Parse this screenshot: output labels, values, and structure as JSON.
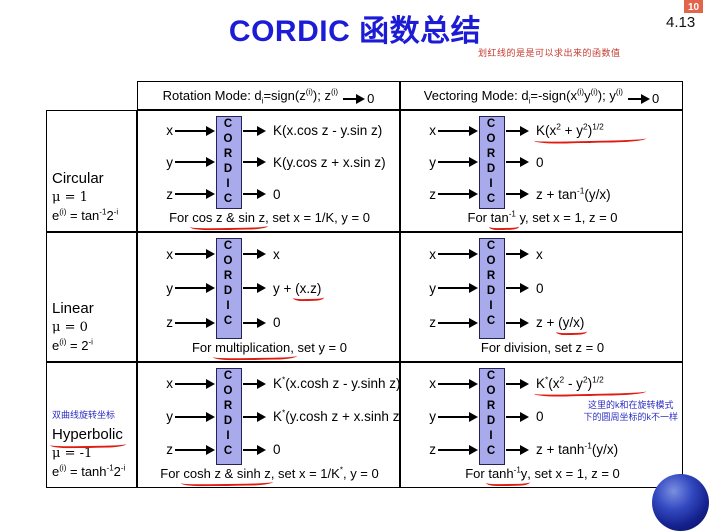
{
  "page": {
    "title": "CORDIC 函数总结",
    "badge": "10",
    "page_number": "4.13",
    "top_note": "划红线的是是可以求出来的函数值"
  },
  "box_label": "CORDIC",
  "inputs": [
    "x",
    "y",
    "z"
  ],
  "headers": {
    "rotation": {
      "formula": "Rotation Mode: d_{i}=sign(z^{(i)}); z^{(i)}",
      "limit": "0"
    },
    "vectoring": {
      "formula": "Vectoring Mode: d_{i}=-sign(x^{(i)}y^{(i)}); y^{(i)}",
      "limit": "0"
    }
  },
  "rows": [
    {
      "label": {
        "name": "Circular",
        "mu": "μ = 1",
        "e": "e^{(i)} = tan^{-1}2^{-i}"
      },
      "rotation": {
        "outputs": [
          {
            "pre": "K(x.cos z - y.sin z)",
            "marked": "",
            "post": ""
          },
          {
            "pre": "K(y.cos z + x.sin z)",
            "marked": "",
            "post": ""
          },
          {
            "pre": "0",
            "marked": "",
            "post": ""
          }
        ],
        "caption": {
          "pre": "For ",
          "marked": "cos z & sin z",
          "post": ", set x = 1/K, y = 0"
        }
      },
      "vectoring": {
        "outputs": [
          {
            "pre": "",
            "marked": "K(x^{2} + y^{2})^{1/2}",
            "post": ""
          },
          {
            "pre": "0",
            "marked": "",
            "post": ""
          },
          {
            "pre": "z + tan^{-1}(y/x)",
            "marked": "",
            "post": ""
          }
        ],
        "caption": {
          "pre": "For ",
          "marked": "tan^{-1}",
          "post": " y, set x = 1, z = 0"
        }
      }
    },
    {
      "label": {
        "name": "Linear",
        "mu": "μ = 0",
        "e": "e^{(i)} = 2^{-i}"
      },
      "rotation": {
        "outputs": [
          {
            "pre": "x",
            "marked": "",
            "post": ""
          },
          {
            "pre": "y + ",
            "marked": "(x.z)",
            "post": ""
          },
          {
            "pre": "0",
            "marked": "",
            "post": ""
          }
        ],
        "caption": {
          "pre": "For ",
          "marked": "multiplication,",
          "post": " set y = 0"
        }
      },
      "vectoring": {
        "outputs": [
          {
            "pre": "x",
            "marked": "",
            "post": ""
          },
          {
            "pre": "0",
            "marked": "",
            "post": ""
          },
          {
            "pre": "z + ",
            "marked": "(y/x)",
            "post": ""
          }
        ],
        "caption": {
          "pre": "For division, set z = 0",
          "marked": "",
          "post": ""
        }
      }
    },
    {
      "label": {
        "note": "双曲线旋转坐标",
        "name": "Hyperbolic",
        "mu": "μ = -1",
        "e": "e^{(i)} = tanh^{-1}2^{-i}"
      },
      "rotation": {
        "outputs": [
          {
            "pre": "K^{*}(x.cosh z - y.sinh z)",
            "marked": "",
            "post": ""
          },
          {
            "pre": "K^{*}(y.cosh z + x.sinh z)",
            "marked": "",
            "post": ""
          },
          {
            "pre": "0",
            "marked": "",
            "post": ""
          }
        ],
        "caption": {
          "pre": "For ",
          "marked": "cosh z & sinh z",
          "post": ", set x = 1/K^{*}, y = 0"
        }
      },
      "vectoring": {
        "outputs": [
          {
            "pre": "",
            "marked": "K^{*}(x^{2} - y^{2})^{1/2}",
            "post": ""
          },
          {
            "pre": "0",
            "marked": "",
            "post": ""
          },
          {
            "pre": "z + tanh^{-1}(y/x)",
            "marked": "",
            "post": ""
          }
        ],
        "caption": {
          "pre": "For ",
          "marked": "tanh^{-1}y",
          "post": ", set x = 1, z = 0"
        },
        "note": {
          "line1": "这里的k和在旋转模式",
          "line2": "下的圆周坐标的k不一样"
        }
      }
    }
  ]
}
